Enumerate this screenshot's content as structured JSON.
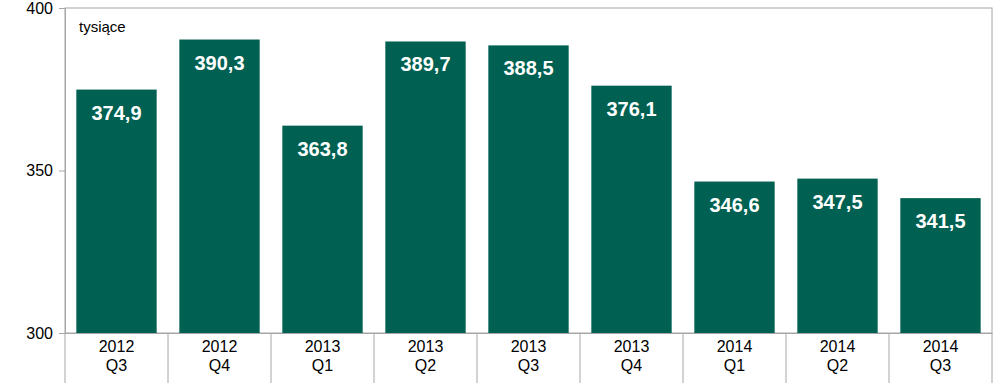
{
  "chart_data": {
    "type": "bar",
    "y_label": "tysiące",
    "categories": [
      "2012 Q3",
      "2012 Q4",
      "2013 Q1",
      "2013 Q2",
      "2013 Q3",
      "2013 Q4",
      "2014 Q1",
      "2014 Q2",
      "2014 Q3"
    ],
    "values": [
      374.9,
      390.3,
      363.8,
      389.7,
      388.5,
      376.1,
      346.6,
      347.5,
      341.5
    ],
    "value_labels": [
      "374,9",
      "390,3",
      "363,8",
      "389,7",
      "388,5",
      "376,1",
      "346,6",
      "347,5",
      "341,5"
    ],
    "color": "#006152",
    "ylim": [
      300,
      400
    ],
    "yticks": [
      300,
      350,
      400
    ],
    "grid": false,
    "data_labels": true
  }
}
